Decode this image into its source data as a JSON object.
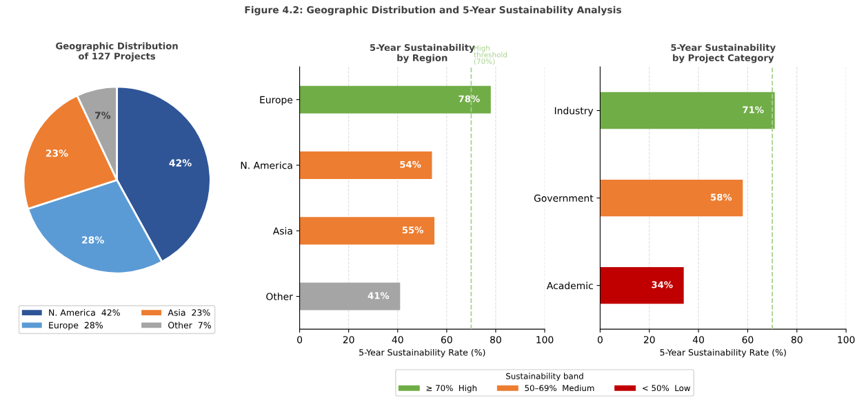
{
  "chart_data": [
    {
      "type": "pie",
      "title": "Geographic Distribution\nof 127 Projects",
      "annotations": [
        "Figure 4.2: Geographic Distribution and 5-Year Sustainability Analysis"
      ],
      "categories": [
        "N. America  42%",
        "Europe  28%",
        "Asia  23%",
        "Other  7%"
      ],
      "values": [
        42,
        28,
        23,
        7
      ],
      "value_labels": [
        "42%",
        "28%",
        "23%",
        "7%"
      ],
      "colors": [
        "#2f5597",
        "#5b9bd5",
        "#ed7d31",
        "#a5a5a5"
      ],
      "legend": "bottom"
    },
    {
      "type": "bar",
      "orientation": "horizontal",
      "title": "5-Year Sustainability\nby Region",
      "xlabel": "5-Year Sustainability Rate (%)",
      "categories": [
        "Europe",
        "N. America",
        "Asia",
        "Other"
      ],
      "values": [
        78,
        54,
        55,
        41
      ],
      "value_labels": [
        "78%",
        "54%",
        "55%",
        "41%"
      ],
      "colors": [
        "#70ad47",
        "#ed7d31",
        "#ed7d31",
        "#a5a5a5"
      ],
      "xlim": [
        0,
        100
      ],
      "xticks": [
        0,
        20,
        40,
        60,
        80,
        100
      ],
      "grid": "x",
      "ref_lines": [
        {
          "axis": "x",
          "value": 70,
          "label": "High\nthreshold\n(70%)",
          "color": "#a9d18e",
          "line_style": "dashed"
        }
      ]
    },
    {
      "type": "bar",
      "orientation": "horizontal",
      "title": "5-Year Sustainability\nby Project Category",
      "xlabel": "5-Year Sustainability Rate (%)",
      "categories": [
        "Industry",
        "Government",
        "Academic"
      ],
      "series": [
        {
          "name": "≥ 70%  High",
          "color": "#70ad47",
          "values": [
            71,
            null,
            null
          ],
          "value_labels": [
            "71%",
            null,
            null
          ]
        },
        {
          "name": "50–69%  Medium",
          "color": "#ed7d31",
          "values": [
            null,
            58,
            null
          ],
          "value_labels": [
            null,
            "58%",
            null
          ]
        },
        {
          "name": "< 50%  Low",
          "color": "#c00000",
          "values": [
            null,
            null,
            34
          ],
          "value_labels": [
            null,
            null,
            "34%"
          ]
        }
      ],
      "legend_title": "Sustainability band",
      "legend": "bottom",
      "xlim": [
        0,
        100
      ],
      "xticks": [
        0,
        20,
        40,
        60,
        80,
        100
      ],
      "grid": "x",
      "ref_lines": [
        {
          "axis": "x",
          "value": 70,
          "color": "#a9d18e",
          "line_style": "dashed"
        }
      ]
    }
  ]
}
